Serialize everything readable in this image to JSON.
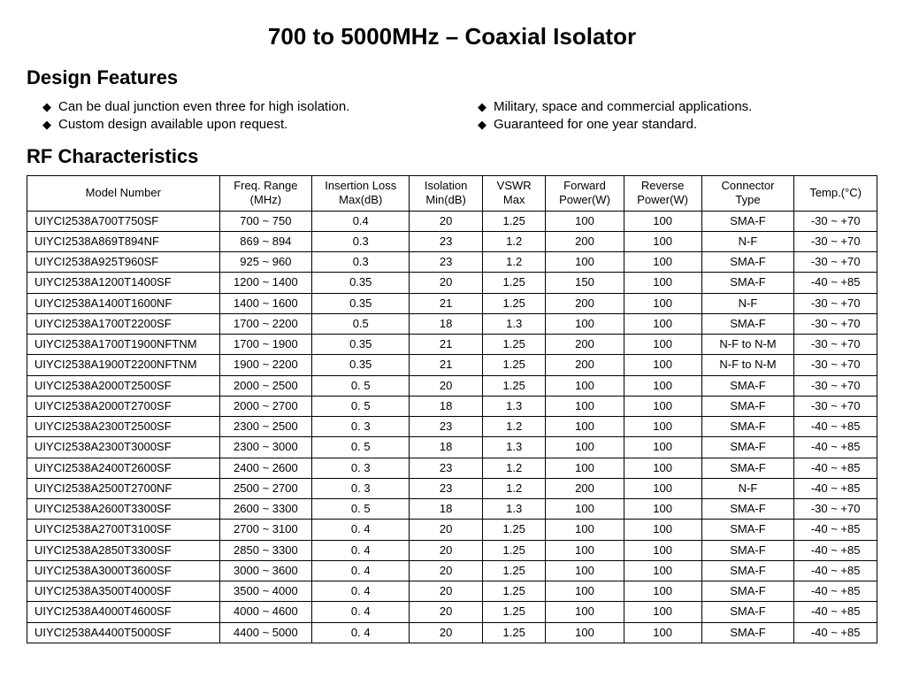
{
  "title": "700 to 5000MHz – Coaxial Isolator",
  "sections": {
    "features_heading": "Design Features",
    "rf_heading": "RF Characteristics"
  },
  "features": {
    "left": [
      "Can be dual junction even three for high isolation.",
      "Custom design available upon request."
    ],
    "right": [
      "Military, space and commercial applications.",
      "Guaranteed for one year standard."
    ]
  },
  "table": {
    "headers": {
      "model": "Model Number",
      "freq": "Freq. Range\n(MHz)",
      "il": "Insertion Loss\nMax(dB)",
      "iso": "Isolation\nMin(dB)",
      "vswr": "VSWR\nMax",
      "fwd": "Forward\nPower(W)",
      "rev": "Reverse\nPower(W)",
      "conn": "Connector\nType",
      "temp": "Temp.(°C)"
    },
    "rows": [
      {
        "model": "UIYCI2538A700T750SF",
        "freq": "700 ~ 750",
        "il": "0.4",
        "iso": "20",
        "vswr": "1.25",
        "fwd": "100",
        "rev": "100",
        "conn": "SMA-F",
        "temp": "-30 ~ +70"
      },
      {
        "model": "UIYCI2538A869T894NF",
        "freq": "869 ~ 894",
        "il": "0.3",
        "iso": "23",
        "vswr": "1.2",
        "fwd": "200",
        "rev": "100",
        "conn": "N-F",
        "temp": "-30 ~ +70"
      },
      {
        "model": "UIYCI2538A925T960SF",
        "freq": "925 ~ 960",
        "il": "0.3",
        "iso": "23",
        "vswr": "1.2",
        "fwd": "100",
        "rev": "100",
        "conn": "SMA-F",
        "temp": "-30 ~ +70"
      },
      {
        "model": "UIYCI2538A1200T1400SF",
        "freq": "1200 ~ 1400",
        "il": "0.35",
        "iso": "20",
        "vswr": "1.25",
        "fwd": "150",
        "rev": "100",
        "conn": "SMA-F",
        "temp": "-40 ~ +85"
      },
      {
        "model": "UIYCI2538A1400T1600NF",
        "freq": "1400 ~ 1600",
        "il": "0.35",
        "iso": "21",
        "vswr": "1.25",
        "fwd": "200",
        "rev": "100",
        "conn": "N-F",
        "temp": "-30 ~ +70"
      },
      {
        "model": "UIYCI2538A1700T2200SF",
        "freq": "1700 ~ 2200",
        "il": "0.5",
        "iso": "18",
        "vswr": "1.3",
        "fwd": "100",
        "rev": "100",
        "conn": "SMA-F",
        "temp": "-30 ~ +70"
      },
      {
        "model": "UIYCI2538A1700T1900NFTNM",
        "freq": "1700 ~ 1900",
        "il": "0.35",
        "iso": "21",
        "vswr": "1.25",
        "fwd": "200",
        "rev": "100",
        "conn": "N-F to N-M",
        "temp": "-30 ~ +70"
      },
      {
        "model": "UIYCI2538A1900T2200NFTNM",
        "freq": "1900 ~ 2200",
        "il": "0.35",
        "iso": "21",
        "vswr": "1.25",
        "fwd": "200",
        "rev": "100",
        "conn": "N-F to N-M",
        "temp": "-30 ~ +70"
      },
      {
        "model": "UIYCI2538A2000T2500SF",
        "freq": "2000 ~ 2500",
        "il": "0. 5",
        "iso": "20",
        "vswr": "1.25",
        "fwd": "100",
        "rev": "100",
        "conn": "SMA-F",
        "temp": "-30 ~ +70"
      },
      {
        "model": "UIYCI2538A2000T2700SF",
        "freq": "2000 ~ 2700",
        "il": "0. 5",
        "iso": "18",
        "vswr": "1.3",
        "fwd": "100",
        "rev": "100",
        "conn": "SMA-F",
        "temp": "-30 ~ +70"
      },
      {
        "model": "UIYCI2538A2300T2500SF",
        "freq": "2300 ~ 2500",
        "il": "0. 3",
        "iso": "23",
        "vswr": "1.2",
        "fwd": "100",
        "rev": "100",
        "conn": "SMA-F",
        "temp": "-40 ~ +85"
      },
      {
        "model": "UIYCI2538A2300T3000SF",
        "freq": "2300 ~ 3000",
        "il": "0. 5",
        "iso": "18",
        "vswr": "1.3",
        "fwd": "100",
        "rev": "100",
        "conn": "SMA-F",
        "temp": "-40 ~ +85"
      },
      {
        "model": "UIYCI2538A2400T2600SF",
        "freq": "2400 ~ 2600",
        "il": "0. 3",
        "iso": "23",
        "vswr": "1.2",
        "fwd": "100",
        "rev": "100",
        "conn": "SMA-F",
        "temp": "-40 ~ +85"
      },
      {
        "model": "UIYCI2538A2500T2700NF",
        "freq": "2500 ~ 2700",
        "il": "0. 3",
        "iso": "23",
        "vswr": "1.2",
        "fwd": "200",
        "rev": "100",
        "conn": "N-F",
        "temp": "-40 ~ +85"
      },
      {
        "model": "UIYCI2538A2600T3300SF",
        "freq": "2600 ~ 3300",
        "il": "0. 5",
        "iso": "18",
        "vswr": "1.3",
        "fwd": "100",
        "rev": "100",
        "conn": "SMA-F",
        "temp": "-30 ~ +70"
      },
      {
        "model": "UIYCI2538A2700T3100SF",
        "freq": "2700 ~ 3100",
        "il": "0. 4",
        "iso": "20",
        "vswr": "1.25",
        "fwd": "100",
        "rev": "100",
        "conn": "SMA-F",
        "temp": "-40 ~ +85"
      },
      {
        "model": "UIYCI2538A2850T3300SF",
        "freq": "2850 ~ 3300",
        "il": "0. 4",
        "iso": "20",
        "vswr": "1.25",
        "fwd": "100",
        "rev": "100",
        "conn": "SMA-F",
        "temp": "-40 ~ +85"
      },
      {
        "model": "UIYCI2538A3000T3600SF",
        "freq": "3000 ~ 3600",
        "il": "0. 4",
        "iso": "20",
        "vswr": "1.25",
        "fwd": "100",
        "rev": "100",
        "conn": "SMA-F",
        "temp": "-40 ~ +85"
      },
      {
        "model": "UIYCI2538A3500T4000SF",
        "freq": "3500 ~ 4000",
        "il": "0. 4",
        "iso": "20",
        "vswr": "1.25",
        "fwd": "100",
        "rev": "100",
        "conn": "SMA-F",
        "temp": "-40 ~ +85"
      },
      {
        "model": "UIYCI2538A4000T4600SF",
        "freq": "4000 ~ 4600",
        "il": "0. 4",
        "iso": "20",
        "vswr": "1.25",
        "fwd": "100",
        "rev": "100",
        "conn": "SMA-F",
        "temp": "-40 ~ +85"
      },
      {
        "model": "UIYCI2538A4400T5000SF",
        "freq": "4400 ~ 5000",
        "il": "0. 4",
        "iso": "20",
        "vswr": "1.25",
        "fwd": "100",
        "rev": "100",
        "conn": "SMA-F",
        "temp": "-40 ~ +85"
      }
    ]
  }
}
